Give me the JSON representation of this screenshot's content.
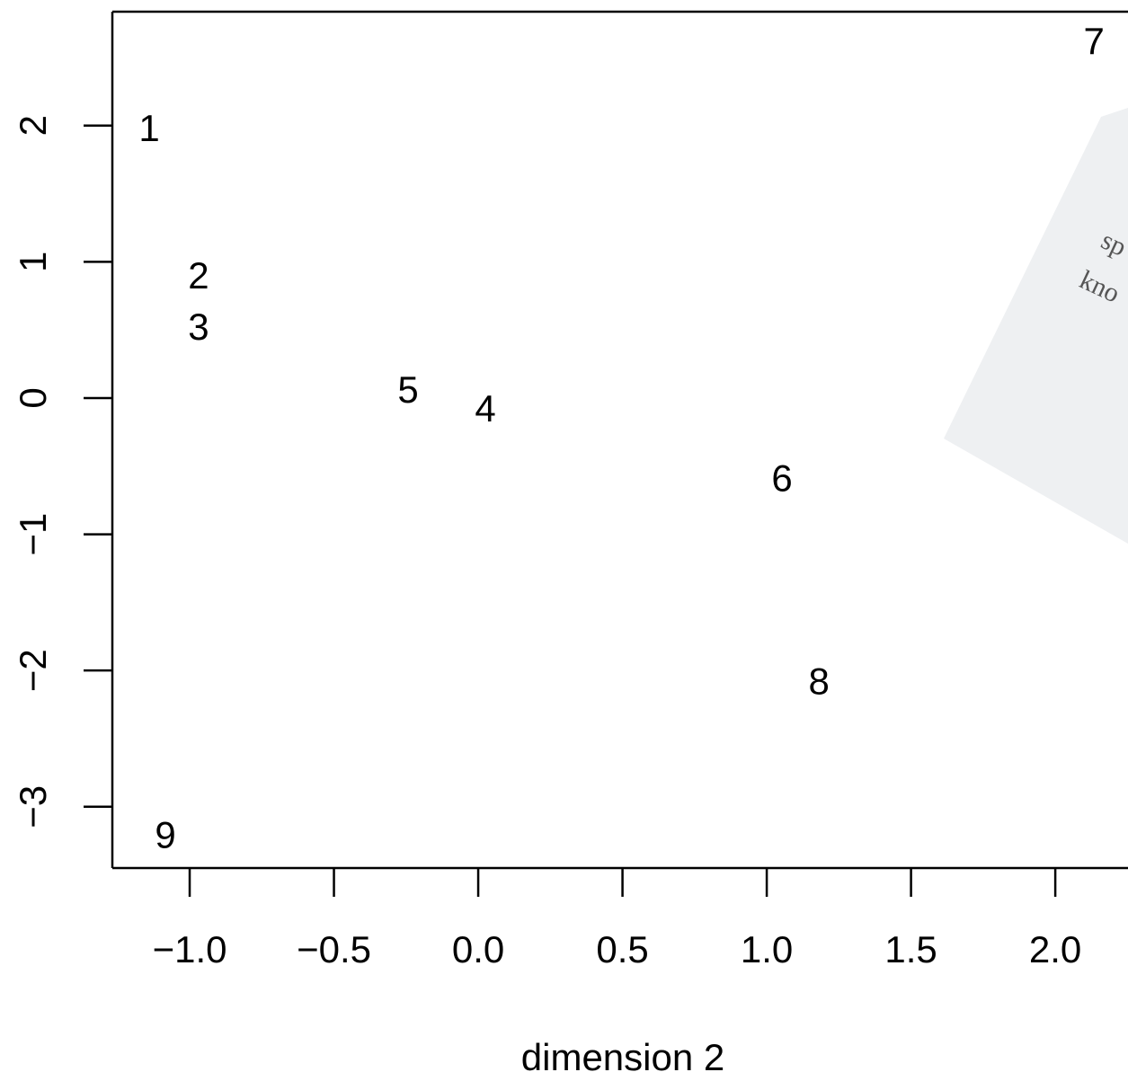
{
  "chart_data": {
    "type": "scatter",
    "x_label": "dimension 2",
    "labels": [
      "1",
      "2",
      "3",
      "4",
      "5",
      "6",
      "7",
      "8",
      "9"
    ],
    "x": [
      -1.14,
      -0.969,
      -0.969,
      0.025,
      -0.243,
      1.053,
      2.134,
      1.181,
      -1.084
    ],
    "y": [
      1.96,
      0.877,
      0.5,
      -0.1,
      0.04,
      -0.61,
      2.6,
      -2.1,
      -3.23
    ],
    "color": "#000000",
    "xlim": [
      -1.268,
      2.252
    ],
    "ylim": [
      -3.45,
      2.836
    ],
    "xticks": [
      {
        "value": -1,
        "label": "−1.0"
      },
      {
        "value": -0.5,
        "label": "−0.5"
      },
      {
        "value": 0,
        "label": "0.0"
      },
      0.5,
      {
        "value": 1,
        "label": "1.0"
      },
      1.5,
      {
        "value": 2,
        "label": "2.0"
      }
    ],
    "yticks": [
      {
        "value": -3,
        "label": "−3"
      },
      {
        "value": -2,
        "label": "−2"
      },
      {
        "value": -1,
        "label": "−1"
      },
      0,
      1,
      2
    ],
    "annotations": [
      "sp",
      "kno"
    ]
  }
}
